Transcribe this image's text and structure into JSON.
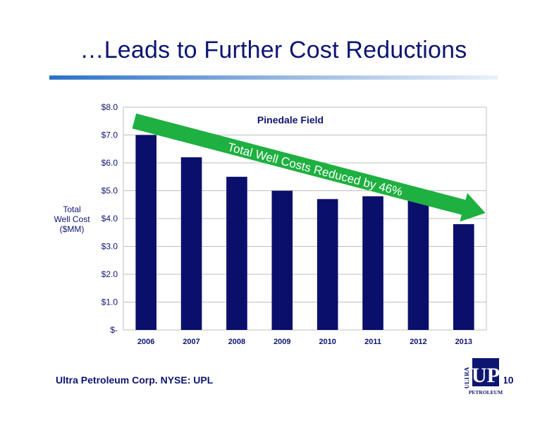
{
  "slide": {
    "title": "…Leads to Further Cost Reductions",
    "footer": "Ultra Petroleum Corp. NYSE: UPL",
    "page_number": "10",
    "logo": {
      "mark": "UP",
      "top_text": "ULTRA",
      "bottom_text": "PETROLEUM"
    }
  },
  "colors": {
    "title": "#0d1570",
    "bar": "#0a0f6b",
    "arrow": "#1eb040",
    "grid": "#bfbfbf",
    "axis_text": "#0d1570"
  },
  "chart_data": {
    "type": "bar",
    "title": "Pinedale Field",
    "ylabel": "Total Well Cost ($MM)",
    "ylabel_lines": [
      "Total",
      "Well Cost",
      "($MM)"
    ],
    "xlabel": "",
    "categories": [
      "2006",
      "2007",
      "2008",
      "2009",
      "2010",
      "2011",
      "2012",
      "2013"
    ],
    "values": [
      7.0,
      6.2,
      5.5,
      5.0,
      4.7,
      4.8,
      4.7,
      3.8
    ],
    "ylim": [
      0,
      8
    ],
    "yticks": [
      0,
      1,
      2,
      3,
      4,
      5,
      6,
      7,
      8
    ],
    "ytick_labels": [
      "$-",
      "$1.0",
      "$2.0",
      "$3.0",
      "$4.0",
      "$5.0",
      "$6.0",
      "$7.0",
      "$8.0"
    ],
    "grid": true,
    "annotation": {
      "text": "Total Well Costs Reduced by 46%",
      "from_category": "2006",
      "to_category": "2013",
      "from_value": 7.3,
      "to_value": 4.3
    }
  }
}
